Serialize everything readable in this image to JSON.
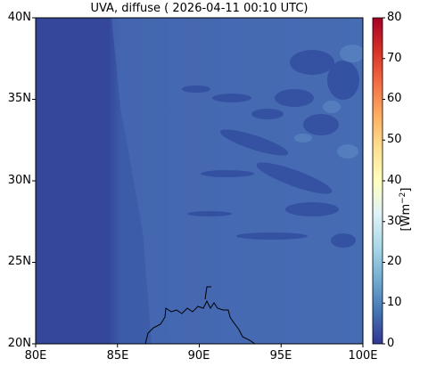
{
  "map": {
    "title": "UVA, diffuse ( 2026-04-11 00:10 UTC)",
    "lon_range": [
      80,
      100
    ],
    "lat_range": [
      20,
      40
    ],
    "lon_labels": [
      "80E",
      "85E",
      "90E",
      "95E",
      "100E"
    ],
    "lat_labels": [
      "40N",
      "35N",
      "30N",
      "25N",
      "20N"
    ],
    "colormap": "RdYlBu_r",
    "background_color": "#3551a3"
  },
  "colorbar": {
    "unit_base": "[Wm",
    "unit_exp": "−2",
    "unit_close": "]",
    "ticks": [
      "80",
      "70",
      "60",
      "50",
      "40",
      "30",
      "20",
      "10",
      "0"
    ],
    "range": [
      0,
      80
    ],
    "colors": [
      "#313695",
      "#4575b4",
      "#74add1",
      "#abd9e9",
      "#e0f3f8",
      "#ffffbf",
      "#fee090",
      "#fdae61",
      "#f46d43",
      "#d73027",
      "#a50026"
    ]
  }
}
